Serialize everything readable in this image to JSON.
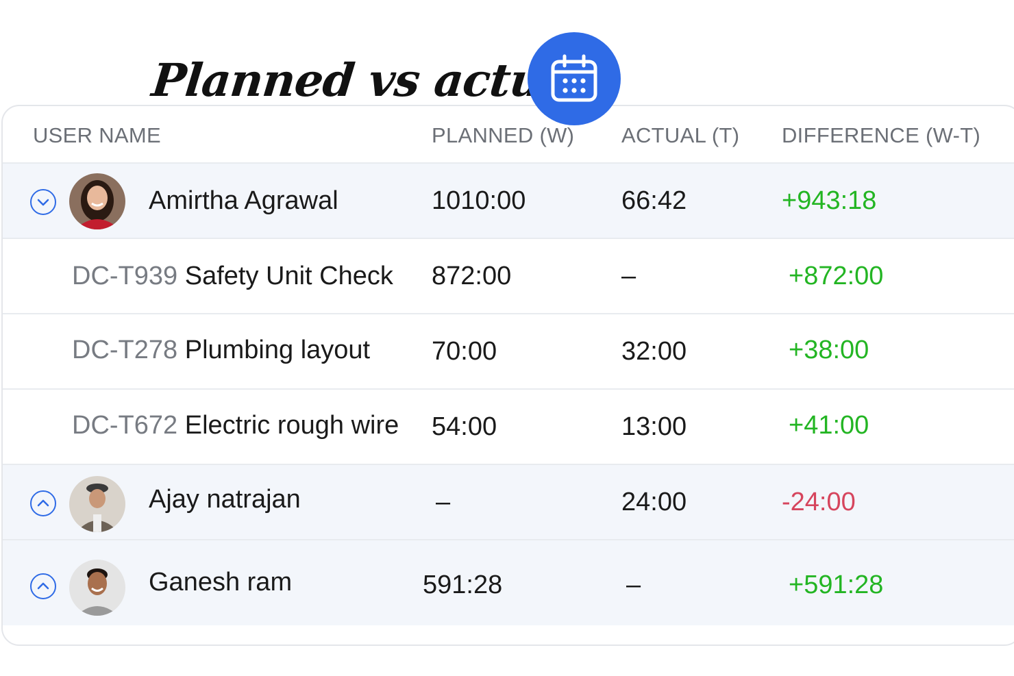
{
  "title": "Planned vs actual",
  "colors": {
    "accent": "#2f6be6",
    "positive": "#23b523",
    "negative": "#d6455d",
    "row_highlight": "#f3f6fb"
  },
  "icons": {
    "badge": "calendar-icon",
    "expand": "chevron-down-circle-icon",
    "collapse": "chevron-up-circle-icon"
  },
  "headers": {
    "user_name": "USER NAME",
    "planned": "PLANNED (W)",
    "actual": "ACTUAL (T)",
    "difference": "DIFFERENCE (W-T)"
  },
  "rows": [
    {
      "kind": "user",
      "name": "Amirtha Agrawal",
      "planned": "1010:00",
      "actual": "66:42",
      "difference": "+943:18",
      "expanded": true
    },
    {
      "kind": "task",
      "id": "DC-T939",
      "name": "Safety Unit Check",
      "planned": "872:00",
      "actual": "–",
      "difference": "+872:00"
    },
    {
      "kind": "task",
      "id": "DC-T278",
      "name": "Plumbing layout",
      "planned": "70:00",
      "actual": "32:00",
      "difference": "+38:00"
    },
    {
      "kind": "task",
      "id": "DC-T672",
      "name": "Electric rough wire",
      "planned": "54:00",
      "actual": "13:00",
      "difference": "+41:00"
    },
    {
      "kind": "user",
      "name": "Ajay natrajan",
      "planned": "–",
      "actual": "24:00",
      "difference": "-24:00",
      "expanded": false
    },
    {
      "kind": "user",
      "name": "Ganesh ram",
      "planned": "591:28",
      "actual": "–",
      "difference": "+591:28",
      "expanded": false
    }
  ]
}
